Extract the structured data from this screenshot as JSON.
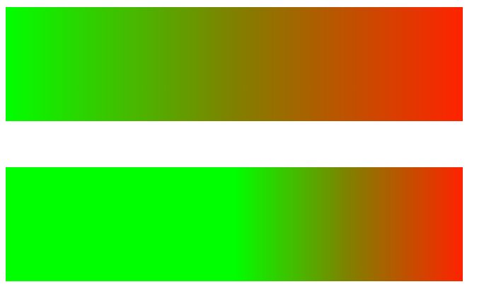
{
  "bars": [
    {
      "id": "top",
      "stops": [
        {
          "offset": 0,
          "color": "#00ff00"
        },
        {
          "offset": 0.5,
          "color": "#808000"
        },
        {
          "offset": 1,
          "color": "#ff2200"
        }
      ]
    },
    {
      "id": "bottom",
      "stops": [
        {
          "offset": 0,
          "color": "#00ff00"
        },
        {
          "offset": 0.5,
          "color": "#00ff00"
        },
        {
          "offset": 0.75,
          "color": "#808000"
        },
        {
          "offset": 1,
          "color": "#ff2200"
        }
      ]
    }
  ]
}
